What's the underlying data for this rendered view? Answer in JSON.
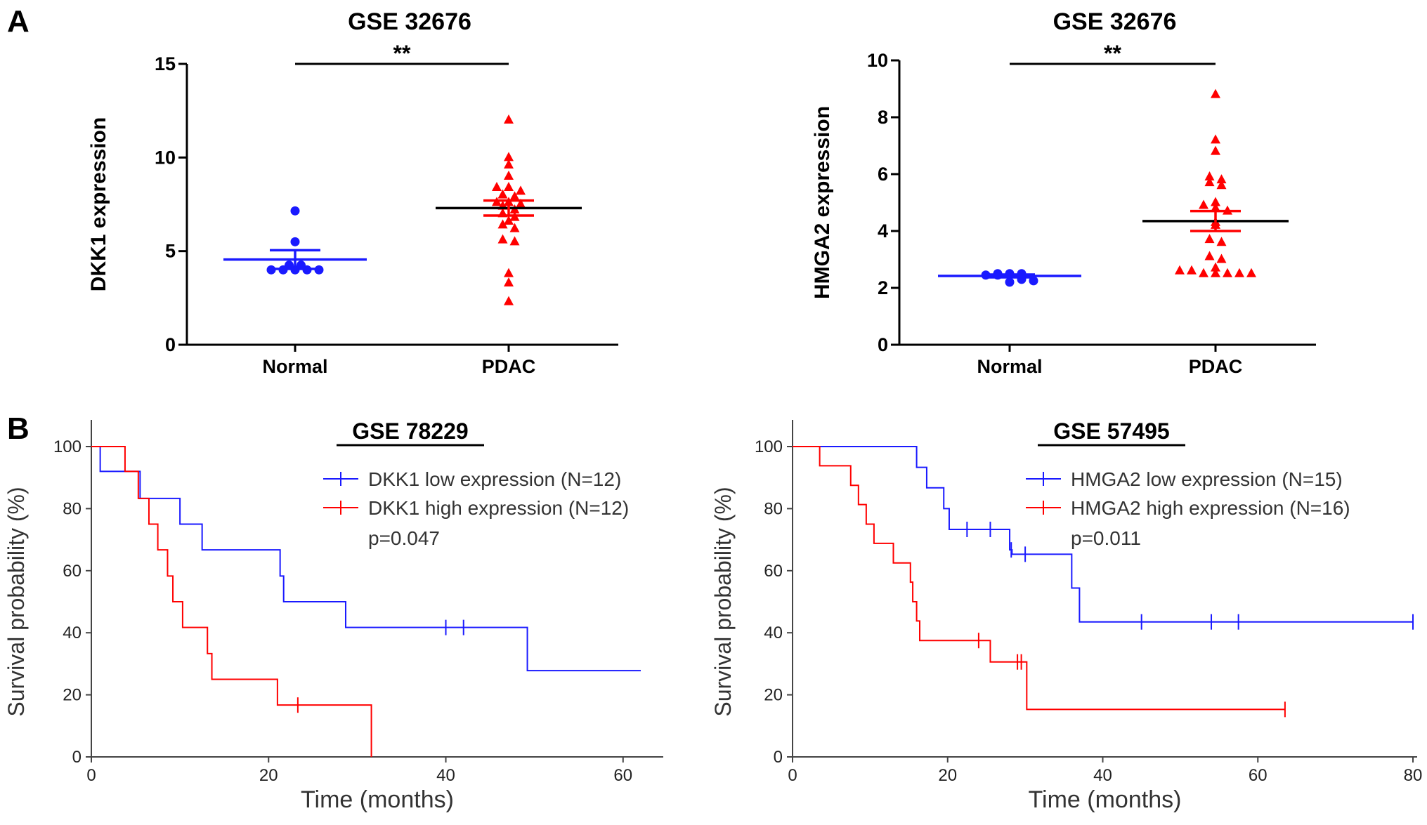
{
  "chart_data": [
    {
      "panel": "A",
      "type": "scatter",
      "title": "GSE 32676",
      "ylabel": "DKK1 expression",
      "xlabel": "",
      "ylim": [
        0,
        15
      ],
      "yticks": [
        0,
        5,
        10,
        15
      ],
      "categories": [
        "Normal",
        "PDAC"
      ],
      "significance": "**",
      "groups": [
        {
          "name": "Normal",
          "color": "#1a1aff",
          "marker": "circle",
          "mean": 4.55,
          "sem_low": 4.05,
          "sem_high": 5.05,
          "values": [
            4.0,
            4.0,
            4.0,
            4.0,
            4.0,
            4.25,
            4.25,
            5.5,
            7.15
          ]
        },
        {
          "name": "PDAC",
          "color": "#ff0000",
          "marker": "triangle",
          "mean": 7.3,
          "sem_low": 6.9,
          "sem_high": 7.7,
          "values": [
            12.0,
            10.0,
            9.6,
            9.0,
            8.4,
            8.4,
            8.2,
            8.0,
            7.9,
            7.6,
            7.6,
            7.5,
            7.4,
            7.2,
            7.0,
            6.8,
            6.6,
            6.4,
            6.2,
            5.6,
            5.5,
            3.8,
            3.3,
            2.3
          ]
        }
      ]
    },
    {
      "panel": "A",
      "type": "scatter",
      "title": "GSE 32676",
      "ylabel": "HMGA2 expression",
      "xlabel": "",
      "ylim": [
        0,
        10
      ],
      "yticks": [
        0,
        2,
        4,
        6,
        8,
        10
      ],
      "categories": [
        "Normal",
        "PDAC"
      ],
      "significance": "**",
      "groups": [
        {
          "name": "Normal",
          "color": "#1a1aff",
          "marker": "circle",
          "mean": 2.42,
          "sem_low": 2.37,
          "sem_high": 2.47,
          "values": [
            2.5,
            2.5,
            2.5,
            2.45,
            2.45,
            2.45,
            2.3,
            2.25,
            2.2
          ]
        },
        {
          "name": "PDAC",
          "color": "#ff0000",
          "marker": "triangle",
          "mean": 4.35,
          "sem_low": 4.0,
          "sem_high": 4.7,
          "values": [
            8.8,
            7.2,
            6.8,
            5.9,
            5.8,
            5.7,
            5.6,
            5.0,
            4.9,
            4.8,
            4.7,
            4.3,
            4.2,
            3.7,
            3.6,
            3.1,
            3.0,
            2.7,
            2.6,
            2.6,
            2.5,
            2.5,
            2.5,
            2.5,
            2.5
          ]
        }
      ]
    },
    {
      "panel": "B",
      "type": "line",
      "subtype": "kaplan-meier",
      "title": "GSE 78229",
      "xlabel": "Time (months)",
      "ylabel": "Survival probability (%)",
      "xlim": [
        0,
        62
      ],
      "ylim": [
        0,
        100
      ],
      "xticks": [
        0,
        20,
        40,
        60
      ],
      "yticks": [
        0,
        20,
        40,
        60,
        80,
        100
      ],
      "pvalue": "p=0.047",
      "series": [
        {
          "name": "DKK1  low expression (N=12)",
          "color": "#1a1aff",
          "steps": [
            [
              0,
              100
            ],
            [
              1,
              92
            ],
            [
              5.5,
              83.3
            ],
            [
              10,
              75
            ],
            [
              12.5,
              66.7
            ],
            [
              21.3,
              58.3
            ],
            [
              21.7,
              50
            ],
            [
              28.7,
              41.7
            ],
            [
              49.2,
              27.8
            ],
            [
              62,
              27.8
            ]
          ],
          "censored": [
            [
              40,
              41.7
            ],
            [
              42,
              41.7
            ]
          ]
        },
        {
          "name": "DKK1  high expression (N=12)",
          "color": "#ff0000",
          "steps": [
            [
              0,
              100
            ],
            [
              3.8,
              92
            ],
            [
              5.3,
              83.3
            ],
            [
              6.5,
              75
            ],
            [
              7.5,
              66.7
            ],
            [
              8.6,
              58.3
            ],
            [
              9.2,
              50
            ],
            [
              10.3,
              41.7
            ],
            [
              13.1,
              33.3
            ],
            [
              13.6,
              25
            ],
            [
              21,
              16.7
            ],
            [
              31.6,
              0
            ]
          ],
          "censored": [
            [
              23.3,
              16.7
            ]
          ]
        }
      ]
    },
    {
      "panel": "B",
      "type": "line",
      "subtype": "kaplan-meier",
      "title": "GSE 57495",
      "xlabel": "Time (months)",
      "ylabel": "Survival probability (%)",
      "xlim": [
        0,
        80
      ],
      "ylim": [
        0,
        100
      ],
      "xticks": [
        0,
        20,
        40,
        60,
        80
      ],
      "yticks": [
        0,
        20,
        40,
        60,
        80,
        100
      ],
      "pvalue": "p=0.011",
      "series": [
        {
          "name": "HMGA2  low expression (N=15)",
          "color": "#1a1aff",
          "steps": [
            [
              0,
              100
            ],
            [
              16,
              93.3
            ],
            [
              17.3,
              86.7
            ],
            [
              19.5,
              80
            ],
            [
              20.2,
              73.3
            ],
            [
              28,
              66.7
            ],
            [
              28.3,
              65.3
            ],
            [
              36,
              54.4
            ],
            [
              37,
              43.5
            ],
            [
              80,
              43.5
            ]
          ],
          "censored": [
            [
              22.5,
              73.3
            ],
            [
              25.5,
              73.3
            ],
            [
              28.2,
              66.7
            ],
            [
              30,
              65.3
            ],
            [
              45,
              43.5
            ],
            [
              54,
              43.5
            ],
            [
              57.5,
              43.5
            ],
            [
              80,
              43.5
            ]
          ]
        },
        {
          "name": "HMGA2  high expression (N=16)",
          "color": "#ff0000",
          "steps": [
            [
              0,
              100
            ],
            [
              3.5,
              93.8
            ],
            [
              7.5,
              87.5
            ],
            [
              8.5,
              81.3
            ],
            [
              9.5,
              75
            ],
            [
              10.5,
              68.8
            ],
            [
              13,
              62.5
            ],
            [
              15.2,
              56.3
            ],
            [
              15.5,
              50
            ],
            [
              16,
              43.8
            ],
            [
              16.4,
              37.5
            ],
            [
              25.5,
              30.6
            ],
            [
              30.2,
              15.3
            ],
            [
              63.5,
              15.3
            ]
          ],
          "censored": [
            [
              24,
              37.5
            ],
            [
              29,
              30.6
            ],
            [
              29.5,
              30.6
            ],
            [
              63.5,
              15.3
            ]
          ]
        }
      ]
    }
  ],
  "panel_labels": {
    "a": "A",
    "b": "B"
  }
}
